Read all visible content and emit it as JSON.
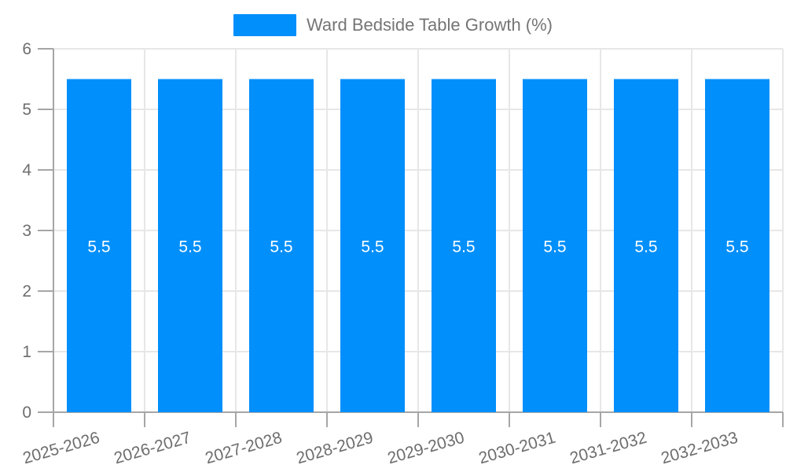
{
  "chart_data": {
    "type": "bar",
    "title": "Ward Bedside Table Growth (%)",
    "categories": [
      "2025-2026",
      "2026-2027",
      "2027-2028",
      "2028-2029",
      "2029-2030",
      "2030-2031",
      "2031-2032",
      "2032-2033"
    ],
    "series": [
      {
        "name": "Ward Bedside Table Growth (%)",
        "values": [
          5.5,
          5.5,
          5.5,
          5.5,
          5.5,
          5.5,
          5.5,
          5.5
        ]
      }
    ],
    "xlabel": "",
    "ylabel": "",
    "ylim": [
      0,
      6
    ],
    "yticks": [
      0,
      1,
      2,
      3,
      4,
      5,
      6
    ],
    "grid": true,
    "legend_position": "top",
    "bar_value_labels_visible": true,
    "colors": {
      "bar": "#008FFB",
      "bar_label": "#FFFFFF",
      "grid": "#E7E7E7",
      "axis": "#A6A6A6",
      "tick_label": "#6E6E6E",
      "legend_label": "#757575",
      "background": "#FFFFFF"
    }
  }
}
